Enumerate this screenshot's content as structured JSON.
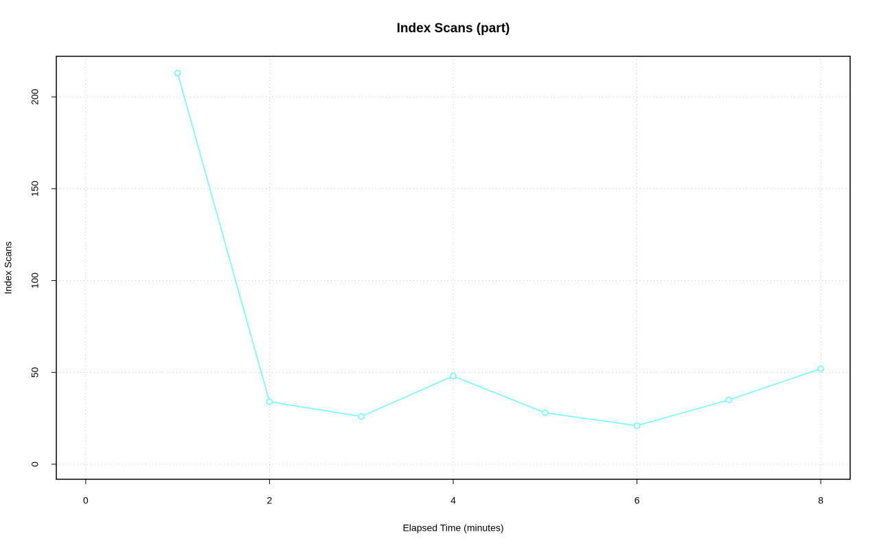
{
  "chart_data": {
    "type": "line",
    "title": "Index Scans (part)",
    "x_label": "Elapsed Time (minutes)",
    "y_label": "Index Scans",
    "x": [
      1,
      2,
      3,
      4,
      5,
      6,
      7,
      8
    ],
    "values": [
      213,
      34,
      26,
      48,
      28,
      21,
      35,
      52
    ],
    "color": "#66ffff",
    "xlim": [
      -0.32,
      8.32
    ],
    "xticks": [
      0,
      2,
      4,
      6,
      8
    ],
    "ylim": [
      -8.2,
      222.1
    ],
    "yticks": [
      0,
      50,
      100,
      150,
      200
    ],
    "grid": true
  }
}
